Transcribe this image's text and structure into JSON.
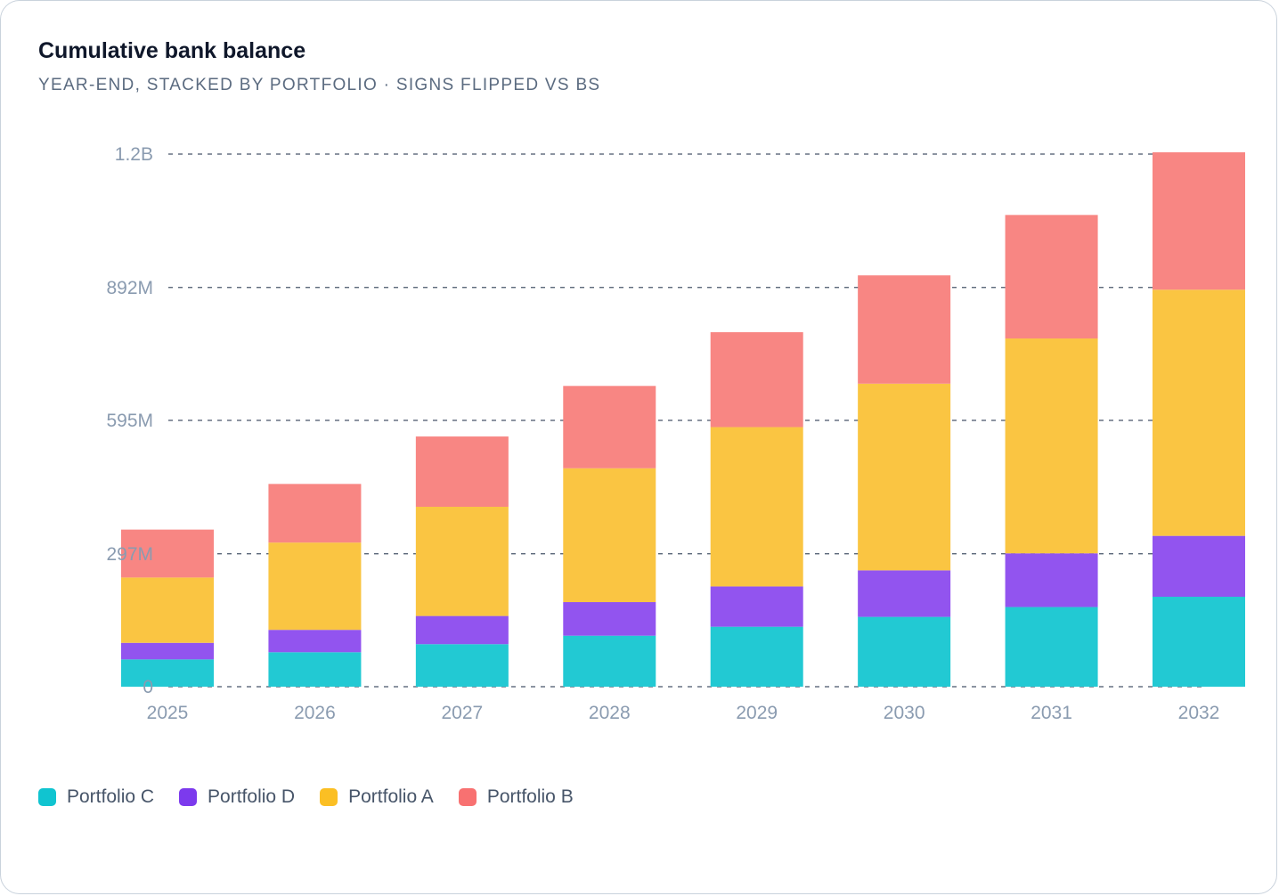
{
  "header": {
    "title": "Cumulative bank balance",
    "subtitle": "YEAR-END, STACKED BY PORTFOLIO · SIGNS FLIPPED VS BS"
  },
  "chart_data": {
    "type": "bar",
    "stacked": true,
    "categories": [
      "2025",
      "2026",
      "2027",
      "2028",
      "2029",
      "2030",
      "2031",
      "2032"
    ],
    "series": [
      {
        "name": "Portfolio C",
        "color": "#22c9d3",
        "legend_color": "#10c4d0",
        "values": [
          61,
          77,
          95,
          114,
          134,
          156,
          178,
          201
        ]
      },
      {
        "name": "Portfolio D",
        "color": "#9254ef",
        "legend_color": "#7c3aed",
        "values": [
          37,
          50,
          63,
          75,
          90,
          104,
          120,
          136
        ]
      },
      {
        "name": "Portfolio A",
        "color": "#fac542",
        "legend_color": "#fbbf24",
        "values": [
          146,
          195,
          244,
          299,
          356,
          417,
          480,
          550
        ]
      },
      {
        "name": "Portfolio B",
        "color": "#f88683",
        "legend_color": "#f87171",
        "values": [
          107,
          131,
          157,
          184,
          212,
          242,
          276,
          307
        ]
      }
    ],
    "y_unit": "millions",
    "ylim": [
      0,
      1190
    ],
    "y_ticks": [
      {
        "value": 0,
        "label": "0"
      },
      {
        "value": 297,
        "label": "297M"
      },
      {
        "value": 595,
        "label": "595M"
      },
      {
        "value": 892,
        "label": "892M"
      },
      {
        "value": 1190,
        "label": "1.2B"
      }
    ],
    "grid": "horizontal-dashed",
    "legend_position": "bottom-left",
    "colors": {
      "grid": "#475569",
      "tick_text": "#8a9bb0"
    }
  }
}
